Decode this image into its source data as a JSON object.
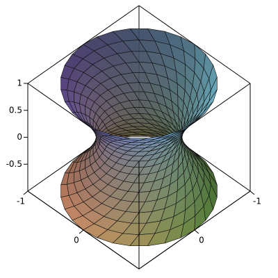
{
  "chart_data": {
    "type": "surface3d",
    "xlim": [
      -1,
      1
    ],
    "xticks": [
      -1,
      0
    ],
    "ylim": [
      -1,
      1
    ],
    "yticks": [
      -1,
      0
    ],
    "zlim": [
      -1,
      1
    ],
    "zticks": [
      1,
      0.5,
      0,
      -0.5
    ]
  }
}
